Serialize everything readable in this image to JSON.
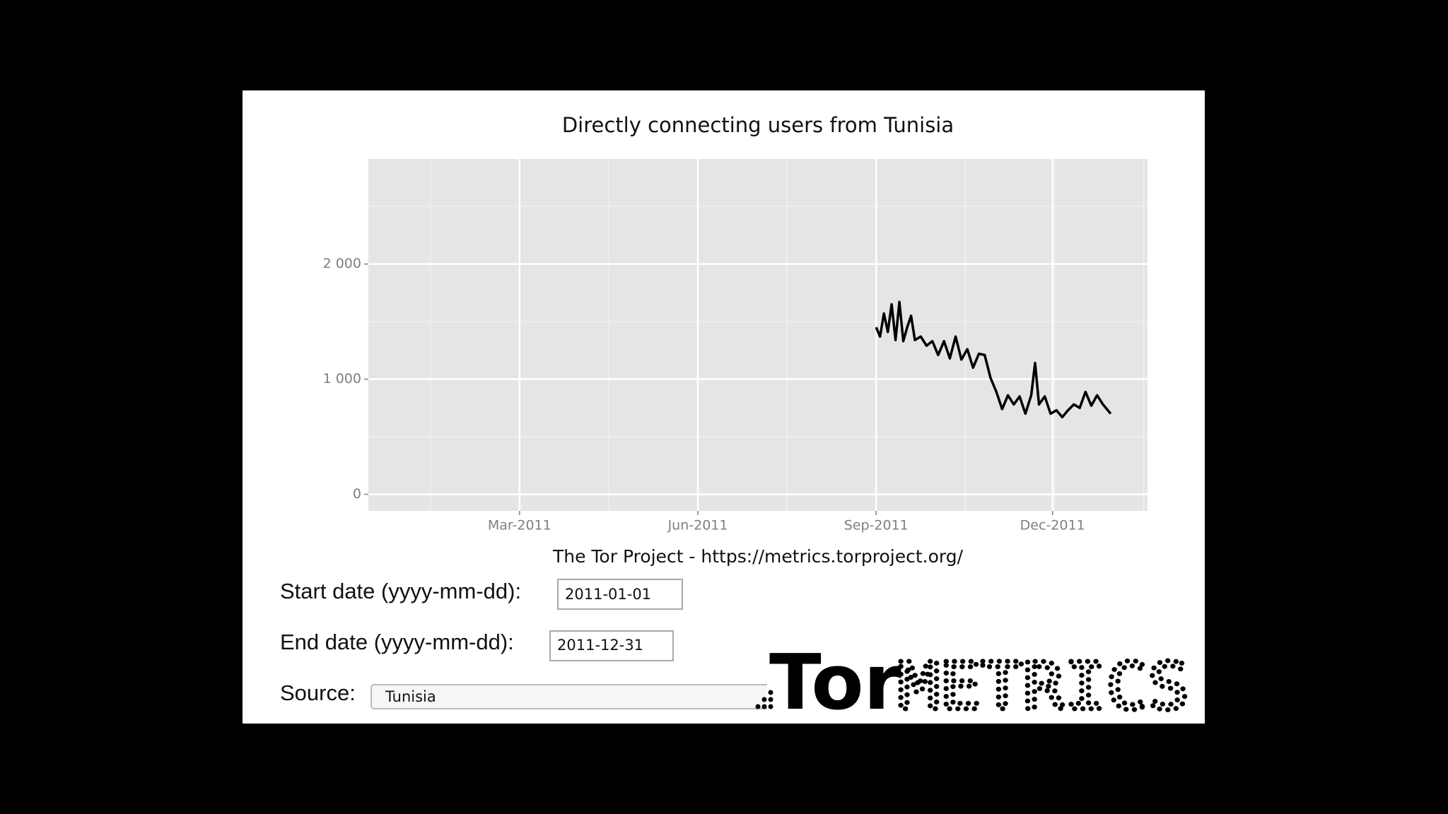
{
  "chart_data": {
    "type": "line",
    "title": "Directly connecting users from Tunisia",
    "caption": "The Tor Project - https://metrics.torproject.org/",
    "x": [
      "2011-09-01",
      "2011-09-03",
      "2011-09-05",
      "2011-09-07",
      "2011-09-09",
      "2011-09-11",
      "2011-09-13",
      "2011-09-15",
      "2011-09-17",
      "2011-09-19",
      "2011-09-21",
      "2011-09-24",
      "2011-09-27",
      "2011-09-30",
      "2011-10-03",
      "2011-10-06",
      "2011-10-09",
      "2011-10-12",
      "2011-10-15",
      "2011-10-18",
      "2011-10-21",
      "2011-10-24",
      "2011-10-27",
      "2011-10-30",
      "2011-11-02",
      "2011-11-05",
      "2011-11-08",
      "2011-11-11",
      "2011-11-14",
      "2011-11-17",
      "2011-11-20",
      "2011-11-22",
      "2011-11-24",
      "2011-11-27",
      "2011-11-30",
      "2011-12-03",
      "2011-12-06",
      "2011-12-09",
      "2011-12-12",
      "2011-12-15",
      "2011-12-18",
      "2011-12-21",
      "2011-12-24",
      "2011-12-27",
      "2011-12-31"
    ],
    "series": [
      {
        "name": "Tunisia",
        "color": "#000000",
        "values": [
          1450,
          1370,
          1570,
          1410,
          1650,
          1340,
          1670,
          1330,
          1450,
          1550,
          1340,
          1370,
          1290,
          1330,
          1210,
          1330,
          1180,
          1370,
          1170,
          1260,
          1100,
          1220,
          1210,
          1010,
          890,
          740,
          860,
          780,
          850,
          700,
          860,
          1140,
          780,
          850,
          700,
          730,
          670,
          730,
          780,
          750,
          890,
          770,
          860,
          780,
          700
        ]
      }
    ],
    "xlim": [
      "2010-12-13",
      "2012-01-19"
    ],
    "xticks": [
      {
        "value": "2011-03-01",
        "label": "Mar-2011"
      },
      {
        "value": "2011-06-01",
        "label": "Jun-2011"
      },
      {
        "value": "2011-09-01",
        "label": "Sep-2011"
      },
      {
        "value": "2011-12-01",
        "label": "Dec-2011"
      }
    ],
    "ylim": [
      -144,
      2912
    ],
    "yticks": [
      0,
      {
        "value": 1000,
        "label": "1 000"
      },
      {
        "value": 2000,
        "label": "2 000"
      }
    ],
    "grid": true
  },
  "form": {
    "start_label": "Start date (yyyy-mm-dd):",
    "start_value": "2011-01-01",
    "end_label": "End date (yyyy-mm-dd):",
    "end_value": "2011-12-31",
    "source_label": "Source:",
    "source_value": "Tunisia"
  },
  "logo": {
    "tor": "Tor",
    "metrics": "METRICS"
  }
}
